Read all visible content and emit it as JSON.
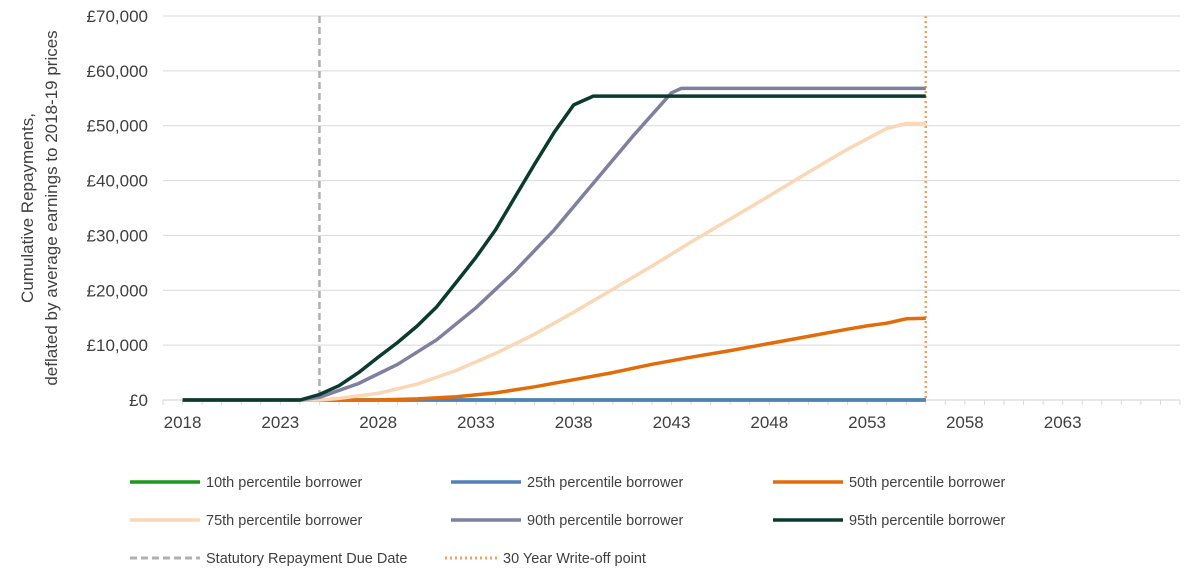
{
  "chart_data": {
    "type": "line",
    "ylabel_lines": [
      "Cumulative Repayments,",
      "deflated by average earnings to 2018-19 prices"
    ],
    "xlabel": "",
    "xlim": [
      2017,
      2069
    ],
    "ylim": [
      0,
      70000
    ],
    "x_ticks": [
      2018,
      2023,
      2028,
      2033,
      2038,
      2043,
      2048,
      2053,
      2058,
      2063
    ],
    "y_ticks": [
      0,
      10000,
      20000,
      30000,
      40000,
      50000,
      60000,
      70000
    ],
    "y_tick_labels": [
      "£0",
      "£10,000",
      "£20,000",
      "£30,000",
      "£40,000",
      "£50,000",
      "£60,000",
      "£70,000"
    ],
    "x_tick_labels": [
      "2018",
      "2023",
      "2028",
      "2033",
      "2038",
      "2043",
      "2048",
      "2053",
      "2058",
      "2063"
    ],
    "grid": "horizontal",
    "legend_position": "bottom",
    "series": [
      {
        "name": "10th percentile borrower",
        "color": "#1a9a1a",
        "style": "solid",
        "points": [
          [
            2018,
            0
          ],
          [
            2056,
            0
          ]
        ]
      },
      {
        "name": "25th percentile borrower",
        "color": "#4f81bd",
        "style": "solid",
        "points": [
          [
            2018,
            0
          ],
          [
            2056,
            0
          ]
        ]
      },
      {
        "name": "50th percentile borrower",
        "color": "#e36c0a",
        "style": "solid",
        "points": [
          [
            2018,
            0
          ],
          [
            2028,
            0
          ],
          [
            2030,
            200
          ],
          [
            2032,
            600
          ],
          [
            2034,
            1300
          ],
          [
            2036,
            2400
          ],
          [
            2038,
            3700
          ],
          [
            2040,
            5000
          ],
          [
            2042,
            6500
          ],
          [
            2044,
            7800
          ],
          [
            2046,
            9000
          ],
          [
            2048,
            10300
          ],
          [
            2050,
            11600
          ],
          [
            2052,
            12900
          ],
          [
            2053,
            13500
          ],
          [
            2054,
            14000
          ],
          [
            2055,
            14800
          ],
          [
            2056,
            14900
          ]
        ]
      },
      {
        "name": "75th percentile borrower",
        "color": "#fad7b5",
        "style": "solid",
        "points": [
          [
            2018,
            0
          ],
          [
            2025,
            0
          ],
          [
            2026,
            300
          ],
          [
            2028,
            1200
          ],
          [
            2030,
            2900
          ],
          [
            2032,
            5400
          ],
          [
            2034,
            8500
          ],
          [
            2036,
            12000
          ],
          [
            2038,
            16000
          ],
          [
            2040,
            20200
          ],
          [
            2042,
            24400
          ],
          [
            2044,
            28800
          ],
          [
            2046,
            33000
          ],
          [
            2048,
            37200
          ],
          [
            2050,
            41500
          ],
          [
            2052,
            45700
          ],
          [
            2054,
            49500
          ],
          [
            2055,
            50400
          ],
          [
            2056,
            50400
          ]
        ]
      },
      {
        "name": "90th percentile borrower",
        "color": "#7f7f9f",
        "style": "solid",
        "points": [
          [
            2018,
            0
          ],
          [
            2024,
            0
          ],
          [
            2025,
            500
          ],
          [
            2027,
            3000
          ],
          [
            2029,
            6500
          ],
          [
            2031,
            11000
          ],
          [
            2033,
            16800
          ],
          [
            2035,
            23500
          ],
          [
            2037,
            31000
          ],
          [
            2039,
            39500
          ],
          [
            2041,
            48000
          ],
          [
            2043,
            56000
          ],
          [
            2043.5,
            56800
          ],
          [
            2056,
            56800
          ]
        ]
      },
      {
        "name": "95th percentile borrower",
        "color": "#0b3b2e",
        "style": "solid",
        "points": [
          [
            2018,
            0
          ],
          [
            2024,
            0
          ],
          [
            2025,
            1000
          ],
          [
            2026,
            2600
          ],
          [
            2027,
            5000
          ],
          [
            2028,
            7800
          ],
          [
            2029,
            10500
          ],
          [
            2030,
            13500
          ],
          [
            2031,
            17000
          ],
          [
            2032,
            21500
          ],
          [
            2033,
            26000
          ],
          [
            2034,
            31000
          ],
          [
            2035,
            37000
          ],
          [
            2036,
            43000
          ],
          [
            2037,
            48800
          ],
          [
            2038,
            53800
          ],
          [
            2039,
            55400
          ],
          [
            2056,
            55400
          ]
        ]
      }
    ],
    "reference_lines": [
      {
        "name": "Statutory Repayment Due Date",
        "x": 2025,
        "color": "#b0b0b0",
        "style": "dashed"
      },
      {
        "name": "30 Year Write-off point",
        "x": 2056,
        "color": "#f0a060",
        "style": "dotted"
      }
    ]
  }
}
